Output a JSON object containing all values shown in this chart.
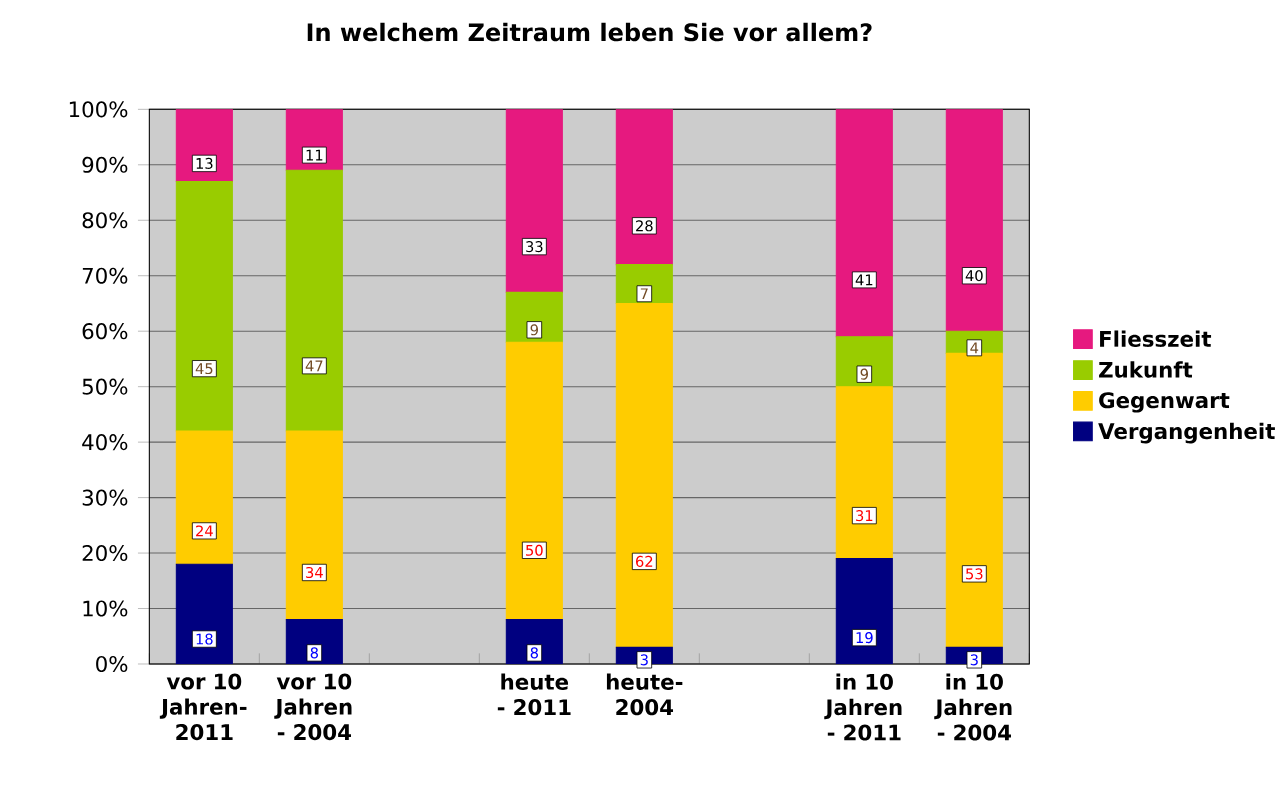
{
  "chart_data": {
    "type": "bar",
    "stacked": true,
    "title": "In welchem Zeitraum leben Sie vor allem?",
    "categories": [
      "vor 10 Jahren-2011",
      "vor 10 Jahren - 2004",
      null,
      "heute - 2011",
      "heute-2004",
      null,
      "in 10 Jahren - 2011",
      "in 10 Jahren - 2004"
    ],
    "series": [
      {
        "name": "Vergangenheit",
        "color": "#000080",
        "values": [
          18,
          8,
          null,
          8,
          3,
          null,
          19,
          3
        ]
      },
      {
        "name": "Gegenwart",
        "color": "#ffcc00",
        "values": [
          24,
          34,
          null,
          50,
          62,
          null,
          31,
          53
        ]
      },
      {
        "name": "Zukunft",
        "color": "#99cc00",
        "values": [
          45,
          47,
          null,
          9,
          7,
          null,
          9,
          4
        ]
      },
      {
        "name": "Fliesszeit",
        "color": "#e6197f",
        "values": [
          13,
          11,
          null,
          33,
          28,
          null,
          41,
          40
        ]
      }
    ],
    "ylim": [
      0,
      100
    ],
    "yticks": [
      {
        "value": 0,
        "label": "0%"
      },
      {
        "value": 10,
        "label": "10%"
      },
      {
        "value": 20,
        "label": "20%"
      },
      {
        "value": 30,
        "label": "30%"
      },
      {
        "value": 40,
        "label": "40%"
      },
      {
        "value": 50,
        "label": "50%"
      },
      {
        "value": 60,
        "label": "60%"
      },
      {
        "value": 70,
        "label": "70%"
      },
      {
        "value": 80,
        "label": "80%"
      },
      {
        "value": 90,
        "label": "90%"
      },
      {
        "value": 100,
        "label": "100%"
      }
    ],
    "grid": "y",
    "legend": "right",
    "data_labels": true
  }
}
